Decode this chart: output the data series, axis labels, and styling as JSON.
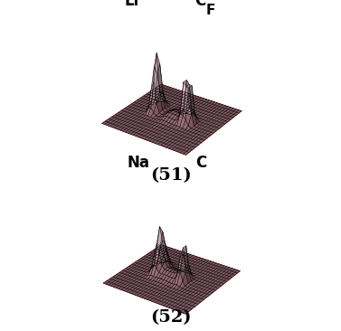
{
  "fig_width": 3.77,
  "fig_height": 3.66,
  "dpi": 100,
  "fig_bg": "#ffffff",
  "surface_bg": "#1a0000",
  "grid_color": "#cc0000",
  "wireframe_color": "#000000",
  "peak_fill_color": "#ffccdd",
  "label51_left": "Li",
  "label51_right": "C",
  "label51_right2": "F",
  "label52_left": "Na",
  "label52_right": "C",
  "caption1": "(51)",
  "caption2": "(52)",
  "grid_nx": 32,
  "grid_ny": 20,
  "xmin": -8,
  "xmax": 8,
  "ymin": -4,
  "ymax": 4,
  "elev": 28,
  "azim": -55,
  "peaks51": [
    [
      -3.5,
      0.3,
      6.0,
      0.45,
      0.45
    ],
    [
      2.5,
      0.0,
      5.0,
      0.38,
      0.38
    ],
    [
      3.4,
      0.0,
      4.0,
      0.32,
      0.32
    ],
    [
      -0.3,
      0.0,
      0.5,
      0.7,
      0.7
    ],
    [
      1.1,
      0.0,
      0.4,
      0.6,
      0.6
    ]
  ],
  "peaks52": [
    [
      -2.8,
      0.3,
      4.5,
      0.55,
      0.55
    ],
    [
      2.2,
      0.0,
      4.0,
      0.42,
      0.42
    ],
    [
      -1.0,
      0.0,
      0.6,
      0.75,
      0.75
    ],
    [
      0.5,
      0.0,
      0.5,
      0.65,
      0.65
    ],
    [
      1.3,
      0.0,
      0.3,
      0.5,
      0.5
    ]
  ]
}
